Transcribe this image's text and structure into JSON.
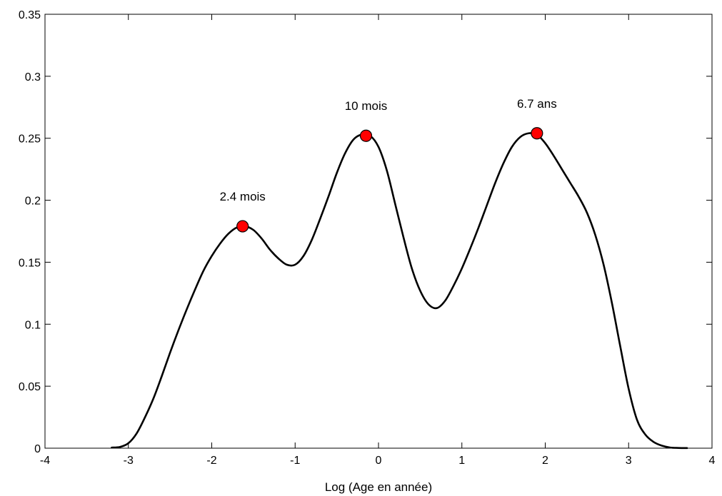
{
  "chart_data": {
    "type": "line",
    "title": "",
    "xlabel": "Log (Age en année)",
    "ylabel": "",
    "xlim": [
      -4,
      4
    ],
    "ylim": [
      0,
      0.35
    ],
    "x_ticks": [
      "-4",
      "-3",
      "-2",
      "-1",
      "0",
      "1",
      "2",
      "3",
      "4"
    ],
    "y_ticks": [
      "0",
      "0.05",
      "0.1",
      "0.15",
      "0.2",
      "0.25",
      "0.3",
      "0.35"
    ],
    "grid": false,
    "line_color": "#000000",
    "marker_color": "#ff0000",
    "series": [
      {
        "x": [
          -3.2,
          -3.1,
          -3.0,
          -2.9,
          -2.8,
          -2.7,
          -2.6,
          -2.5,
          -2.4,
          -2.3,
          -2.2,
          -2.1,
          -2.0,
          -1.9,
          -1.8,
          -1.7,
          -1.6,
          -1.5,
          -1.4,
          -1.3,
          -1.2,
          -1.1,
          -1.0,
          -0.9,
          -0.8,
          -0.7,
          -0.6,
          -0.5,
          -0.4,
          -0.3,
          -0.2,
          -0.1,
          0.0,
          0.1,
          0.2,
          0.3,
          0.4,
          0.5,
          0.6,
          0.7,
          0.8,
          0.9,
          1.0,
          1.1,
          1.2,
          1.3,
          1.4,
          1.5,
          1.6,
          1.7,
          1.8,
          1.9,
          2.0,
          2.1,
          2.2,
          2.3,
          2.4,
          2.5,
          2.6,
          2.7,
          2.8,
          2.9,
          3.0,
          3.1,
          3.2,
          3.3,
          3.4,
          3.5,
          3.6,
          3.7
        ],
        "y": [
          0.0005,
          0.001,
          0.004,
          0.012,
          0.025,
          0.04,
          0.058,
          0.077,
          0.095,
          0.112,
          0.128,
          0.143,
          0.155,
          0.165,
          0.173,
          0.178,
          0.179,
          0.176,
          0.169,
          0.16,
          0.153,
          0.148,
          0.148,
          0.155,
          0.168,
          0.185,
          0.203,
          0.222,
          0.238,
          0.249,
          0.253,
          0.252,
          0.243,
          0.224,
          0.197,
          0.17,
          0.145,
          0.127,
          0.116,
          0.113,
          0.119,
          0.131,
          0.145,
          0.161,
          0.178,
          0.196,
          0.214,
          0.23,
          0.243,
          0.251,
          0.254,
          0.253,
          0.246,
          0.236,
          0.225,
          0.214,
          0.203,
          0.19,
          0.172,
          0.148,
          0.117,
          0.082,
          0.048,
          0.023,
          0.011,
          0.005,
          0.002,
          0.0005,
          0.0002,
          0.0001
        ]
      }
    ],
    "peaks": [
      {
        "x": -1.63,
        "y": 0.179,
        "label": "2.4 mois"
      },
      {
        "x": -0.15,
        "y": 0.252,
        "label": "10 mois"
      },
      {
        "x": 1.9,
        "y": 0.254,
        "label": "6.7 ans"
      }
    ]
  }
}
